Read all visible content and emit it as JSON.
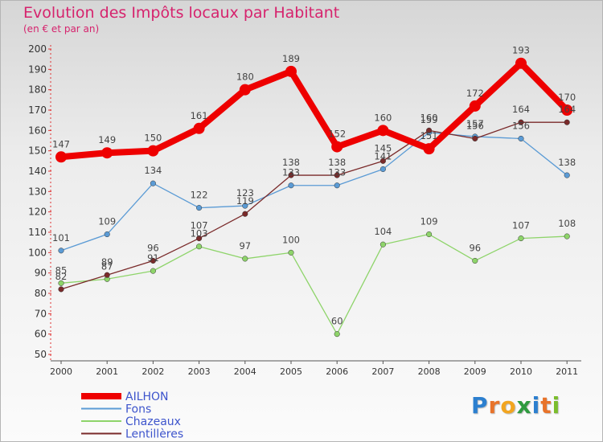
{
  "title": "Evolution des Impôts locaux par Habitant",
  "subtitle": "(en € et par an)",
  "logo": {
    "text": "Proxiti",
    "letter_colors": [
      "#2c7fcf",
      "#e8732a",
      "#f2a51f",
      "#2f9a3f",
      "#2c7fcf",
      "#e8732a",
      "#7bbd2c"
    ]
  },
  "chart_data": {
    "type": "line",
    "title": "Evolution des Impôts locaux par Habitant",
    "subtitle": "(en € et par an)",
    "xlabel": "",
    "ylabel": "",
    "ylim": [
      50,
      200
    ],
    "ytick_step": 10,
    "grid": false,
    "legend_position": "bottom-left",
    "categories": [
      "2000",
      "2001",
      "2002",
      "2003",
      "2004",
      "2005",
      "2006",
      "2007",
      "2008",
      "2009",
      "2010",
      "2011"
    ],
    "series": [
      {
        "name": "AILHON",
        "color": "#ee0000",
        "values": [
          147,
          149,
          150,
          161,
          180,
          189,
          152,
          160,
          151,
          172,
          193,
          170
        ],
        "labels": [
          "147",
          "149",
          "150",
          "161",
          "180",
          "189",
          "152",
          "160",
          "151",
          "172",
          "193",
          "170"
        ]
      },
      {
        "name": "Fons",
        "color": "#5b9bd5",
        "values": [
          101,
          109,
          134,
          122,
          123,
          133,
          133,
          141,
          159,
          157,
          156,
          138
        ],
        "labels": [
          "101",
          "109",
          "134",
          "122",
          "123",
          "133",
          "133",
          "141",
          "159",
          "157",
          "156",
          "138"
        ]
      },
      {
        "name": "Chazeaux",
        "color": "#8ed46a",
        "values": [
          85,
          87,
          91,
          103,
          97,
          100,
          60,
          104,
          109,
          96,
          107,
          108
        ],
        "labels": [
          "85",
          "87",
          "91",
          "103",
          "97",
          "100",
          "60",
          "104",
          "109",
          "96",
          "107",
          "108"
        ]
      },
      {
        "name": "Lentillères",
        "color": "#7a2a2a",
        "values": [
          82,
          89,
          96,
          107,
          119,
          138,
          138,
          145,
          160,
          156,
          164,
          164
        ],
        "labels": [
          "82",
          "89",
          "96",
          "107",
          "119",
          "138",
          "138",
          "145",
          "160",
          "156",
          "164",
          "164"
        ]
      }
    ]
  }
}
